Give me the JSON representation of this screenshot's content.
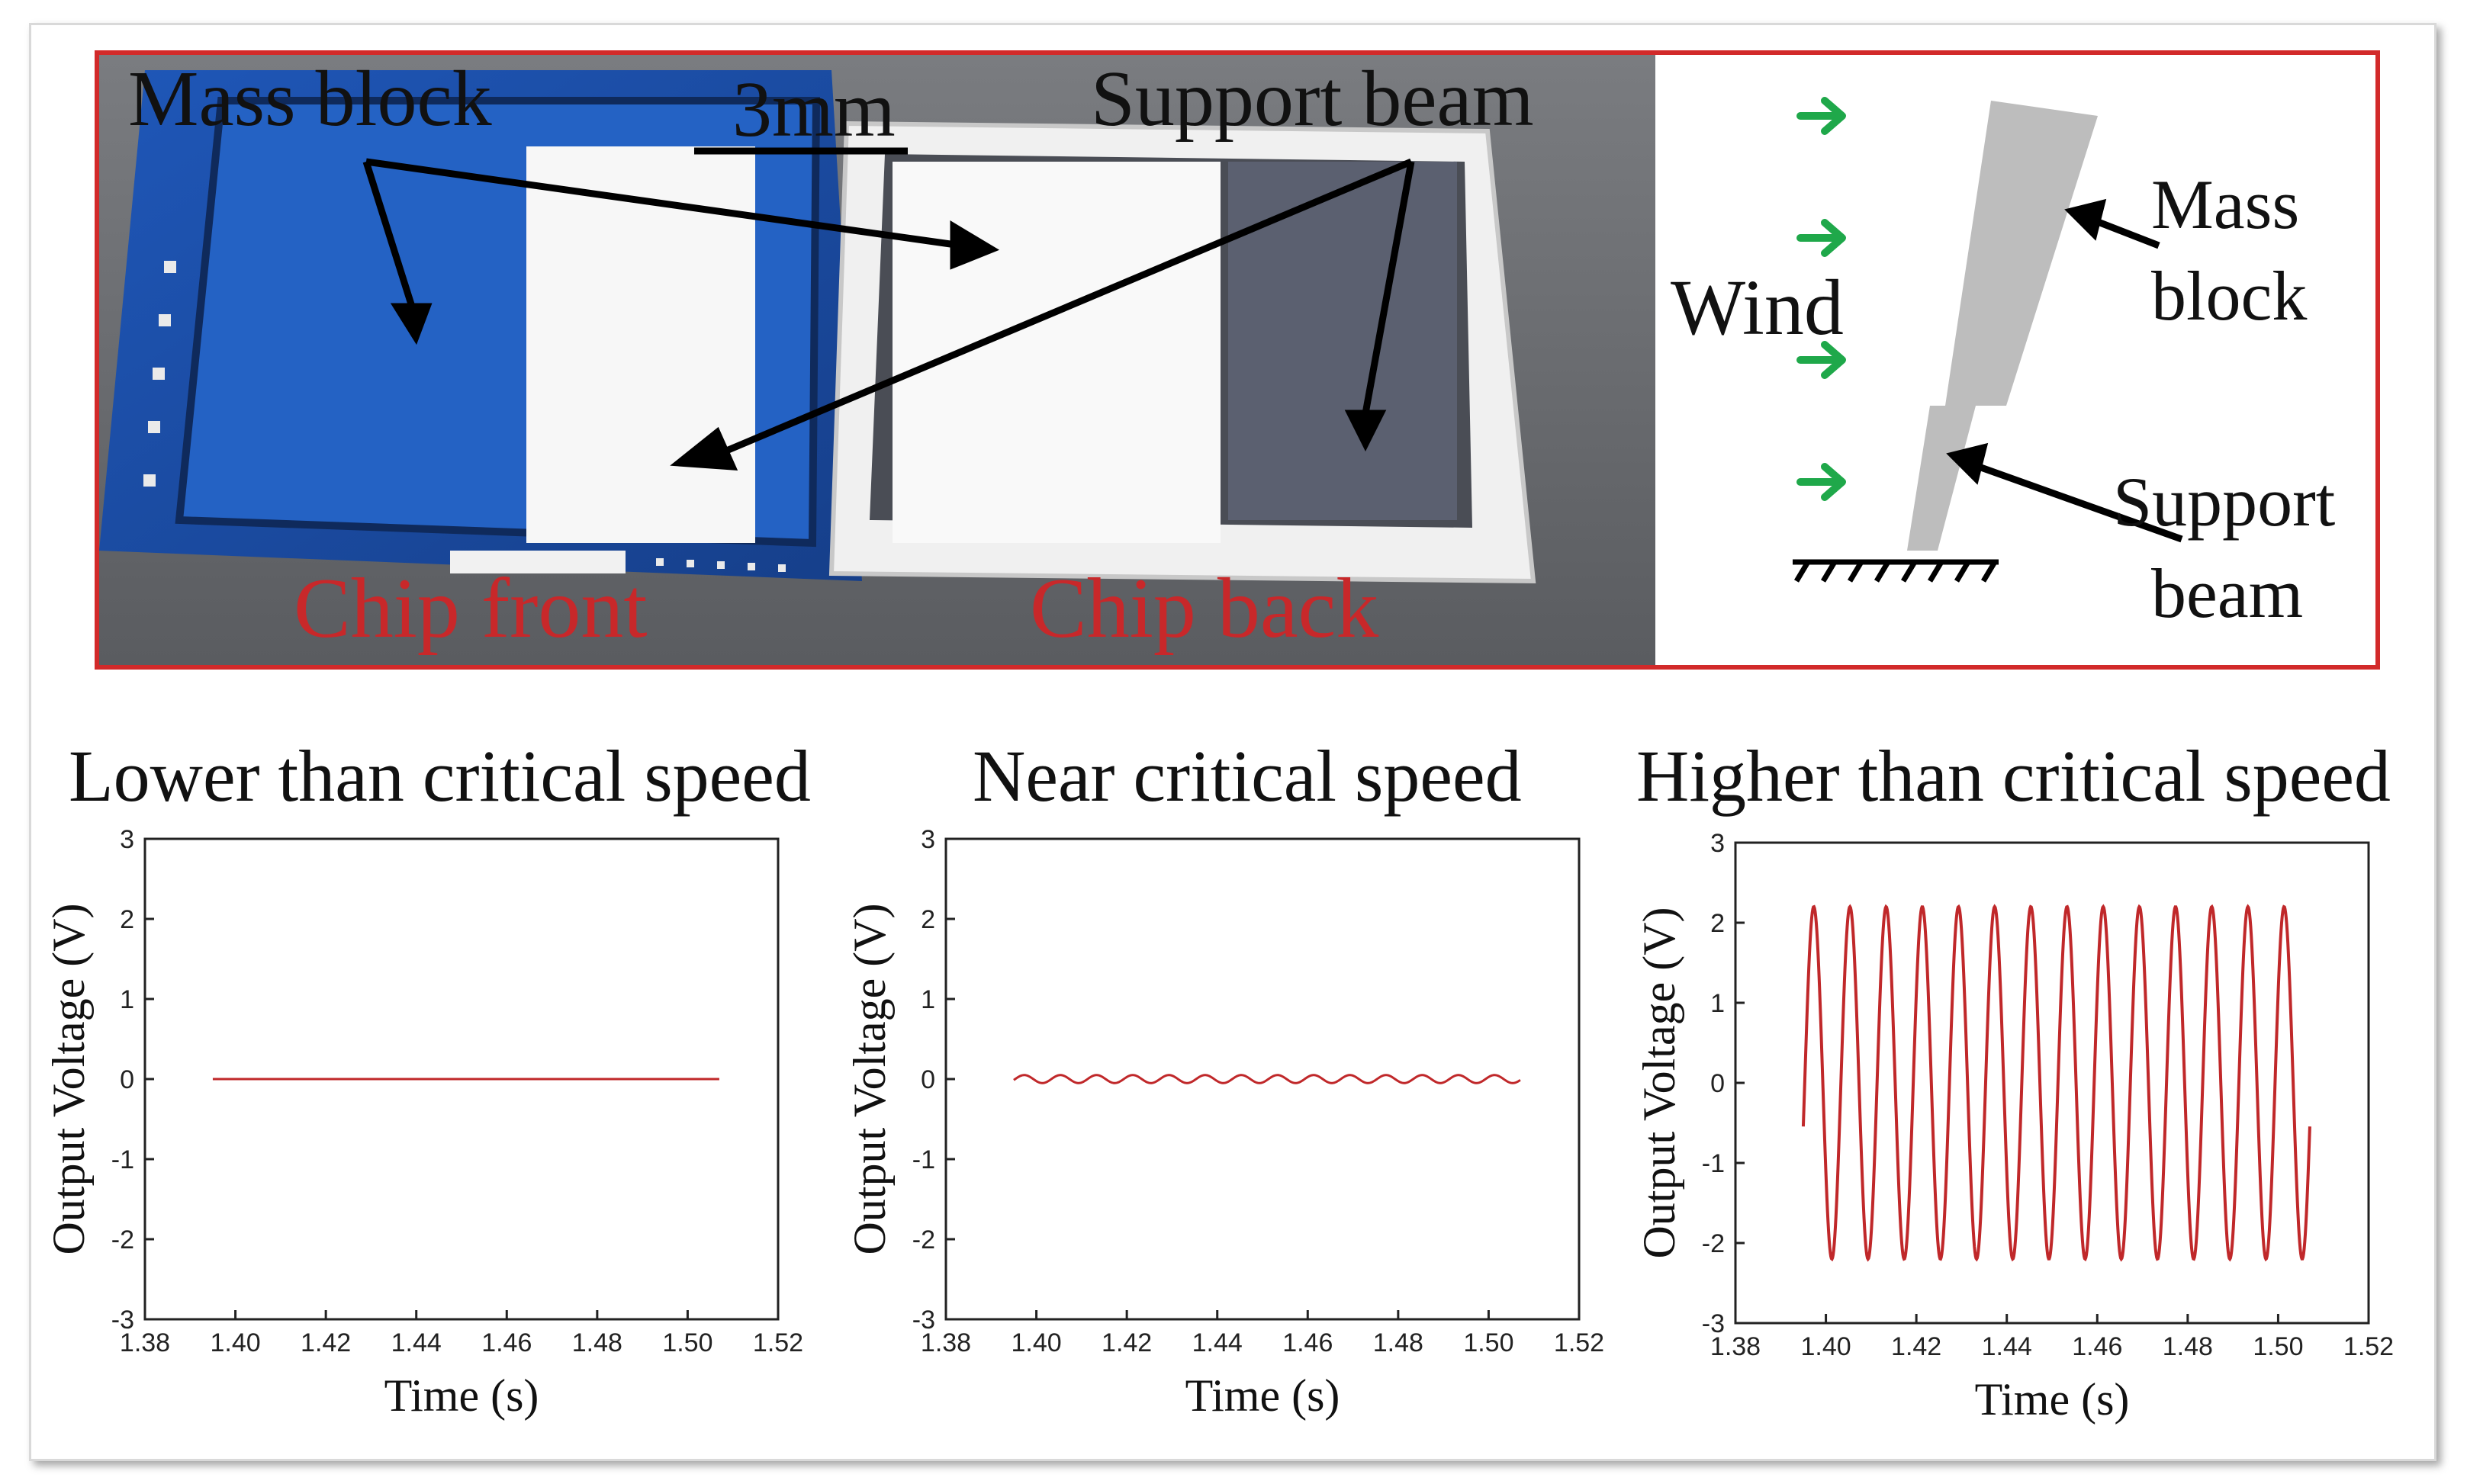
{
  "photo_panel": {
    "scale_bar_label": "3mm",
    "mass_block_label": "Mass block",
    "support_beam_label": "Support beam",
    "chip_front_label": "Chip front",
    "chip_back_label": "Chip back"
  },
  "schematic": {
    "wind_label": "Wind",
    "mass_label_line1": "Mass",
    "mass_label_line2": "block",
    "beam_label_line1": "Support",
    "beam_label_line2": "beam"
  },
  "colors": {
    "panel_border": "#d22a2a",
    "label_red": "#c8282a",
    "wind_arrow": "#1fa84a",
    "signal": "#c0282a"
  },
  "chart_data": [
    {
      "type": "line",
      "title": "Lower than critical speed",
      "xlabel": "Time (s)",
      "ylabel": "Output Voltage (V)",
      "xlim": [
        1.38,
        1.52
      ],
      "ylim": [
        -3,
        3
      ],
      "xticks": [
        "1.38",
        "1.40",
        "1.42",
        "1.44",
        "1.46",
        "1.48",
        "1.50",
        "1.52"
      ],
      "yticks": [
        "3",
        "2",
        "1",
        "0",
        "-1",
        "-2",
        "-3"
      ],
      "x_range": [
        1.395,
        1.507
      ],
      "amplitude": 0.0,
      "cycles": 0,
      "series": [
        {
          "x": [
            1.395,
            1.507
          ],
          "y": [
            0,
            0
          ]
        }
      ]
    },
    {
      "type": "line",
      "title": "Near critical speed",
      "xlabel": "Time (s)",
      "ylabel": "Output Voltage (V)",
      "xlim": [
        1.38,
        1.52
      ],
      "ylim": [
        -3,
        3
      ],
      "xticks": [
        "1.38",
        "1.40",
        "1.42",
        "1.44",
        "1.46",
        "1.48",
        "1.50",
        "1.52"
      ],
      "yticks": [
        "3",
        "2",
        "1",
        "0",
        "-1",
        "-2",
        "-3"
      ],
      "x_range": [
        1.395,
        1.507
      ],
      "amplitude": 0.05,
      "cycles": 14,
      "series": [
        {
          "x": [
            1.395,
            1.507
          ],
          "y": [
            -0.05,
            0.05
          ]
        }
      ]
    },
    {
      "type": "line",
      "title": "Higher than critical speed",
      "xlabel": "Time (s)",
      "ylabel": "Output Voltage (V)",
      "xlim": [
        1.38,
        1.52
      ],
      "ylim": [
        -3,
        3
      ],
      "xticks": [
        "1.38",
        "1.40",
        "1.42",
        "1.44",
        "1.46",
        "1.48",
        "1.50",
        "1.52"
      ],
      "yticks": [
        "3",
        "2",
        "1",
        "0",
        "-1",
        "-2",
        "-3"
      ],
      "x_range": [
        1.395,
        1.507
      ],
      "amplitude": 2.2,
      "cycles": 14,
      "series": [
        {
          "x": [
            1.395,
            1.507
          ],
          "y": [
            -2.2,
            2.2
          ]
        }
      ]
    }
  ]
}
